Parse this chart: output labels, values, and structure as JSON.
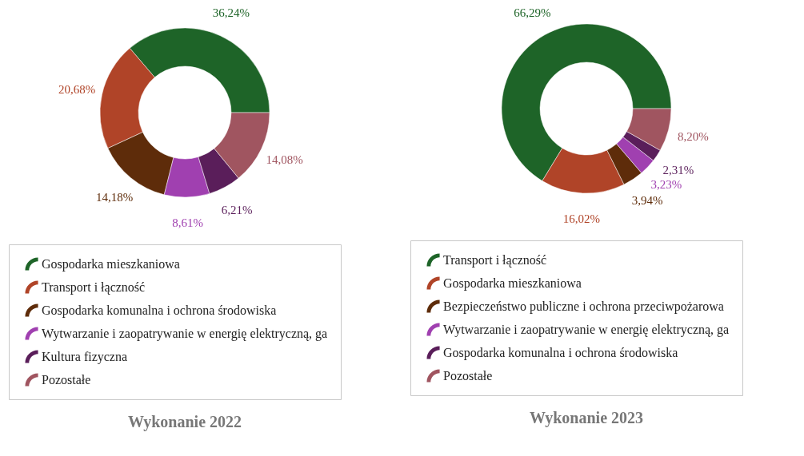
{
  "chart_data": [
    {
      "type": "donut",
      "title": "Wykonanie 2022",
      "categories": [
        "Gospodarka mieszkaniowa",
        "Transport i łączność",
        "Gospodarka komunalna i ochrona środowiska",
        "Wytwarzanie i zaopatrywanie w energię elektryczną, ga",
        "Kultura fizyczna",
        "Pozostałe"
      ],
      "values": [
        36.24,
        20.68,
        14.18,
        8.61,
        6.21,
        14.08
      ],
      "value_labels": [
        "36,24%",
        "20,68%",
        "14,18%",
        "8,61%",
        "6,21%",
        "14,08%"
      ],
      "colors": [
        "#1e6428",
        "#b04428",
        "#5e2c0a",
        "#a040b0",
        "#5a1e5a",
        "#a05560"
      ],
      "legend": "bottom"
    },
    {
      "type": "donut",
      "title": "Wykonanie 2023",
      "categories": [
        "Transport i łączność",
        "Gospodarka mieszkaniowa",
        "Bezpieczeństwo publiczne i ochrona przeciwpożarowa",
        "Wytwarzanie i zaopatrywanie w energię elektryczną, ga",
        "Gospodarka komunalna i ochrona środowiska",
        "Pozostałe"
      ],
      "values": [
        66.29,
        16.02,
        3.94,
        3.23,
        2.31,
        8.2
      ],
      "value_labels": [
        "66,29%",
        "16,02%",
        "3,94%",
        "3,23%",
        "2,31%",
        "8,20%"
      ],
      "colors": [
        "#1e6428",
        "#b04428",
        "#5e2c0a",
        "#a040b0",
        "#5a1e5a",
        "#a05560"
      ],
      "legend": "bottom"
    }
  ]
}
